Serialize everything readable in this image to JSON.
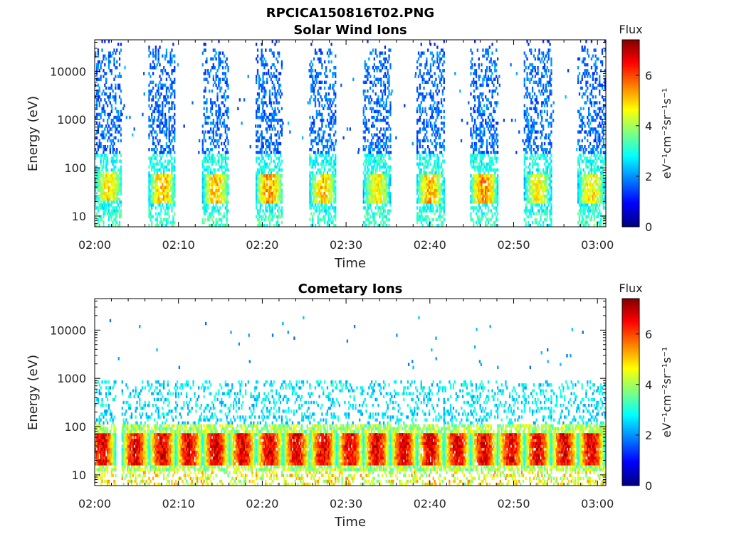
{
  "figure": {
    "filename": "RPCICA150816T02.PNG"
  },
  "chart_data": [
    {
      "type": "heatmap",
      "title": "Solar Wind Ions",
      "xlabel": "Time",
      "ylabel": "Energy (eV)",
      "y_scale": "log",
      "ylim": [
        6,
        45000
      ],
      "xlim": [
        "02:00",
        "03:01"
      ],
      "x_ticks": [
        "02:00",
        "02:10",
        "02:20",
        "02:30",
        "02:40",
        "02:50",
        "03:00"
      ],
      "y_ticks": [
        "10",
        "100",
        "1000",
        "10000"
      ],
      "colorbar": {
        "title": "Flux",
        "label": "eV⁻¹cm⁻²sr⁻¹s⁻¹",
        "range": [
          0,
          7.4
        ],
        "ticks": [
          "0",
          "2",
          "4",
          "6"
        ]
      },
      "colormap": "jet",
      "scan_bursts": [
        {
          "start_min": 0.0,
          "end_min": 3.2,
          "peak_energy_eV": 40,
          "peak_flux": 5.2
        },
        {
          "start_min": 6.4,
          "end_min": 9.6,
          "peak_energy_eV": 35,
          "peak_flux": 5.5
        },
        {
          "start_min": 12.8,
          "end_min": 16.0,
          "peak_energy_eV": 38,
          "peak_flux": 5.5
        },
        {
          "start_min": 19.2,
          "end_min": 22.4,
          "peak_energy_eV": 35,
          "peak_flux": 5.8
        },
        {
          "start_min": 25.6,
          "end_min": 28.8,
          "peak_energy_eV": 35,
          "peak_flux": 5.4
        },
        {
          "start_min": 32.0,
          "end_min": 35.2,
          "peak_energy_eV": 38,
          "peak_flux": 5.0
        },
        {
          "start_min": 38.4,
          "end_min": 41.6,
          "peak_energy_eV": 35,
          "peak_flux": 5.6
        },
        {
          "start_min": 44.8,
          "end_min": 48.0,
          "peak_energy_eV": 35,
          "peak_flux": 5.9
        },
        {
          "start_min": 51.2,
          "end_min": 54.4,
          "peak_energy_eV": 35,
          "peak_flux": 5.0
        },
        {
          "start_min": 57.6,
          "end_min": 60.8,
          "peak_energy_eV": 35,
          "peak_flux": 5.2
        }
      ],
      "background_flux_high_energy": 1.2
    },
    {
      "type": "heatmap",
      "title": "Cometary Ions",
      "xlabel": "Time",
      "ylabel": "Energy (eV)",
      "y_scale": "log",
      "ylim": [
        6,
        45000
      ],
      "xlim": [
        "02:00",
        "03:01"
      ],
      "x_ticks": [
        "02:00",
        "02:10",
        "02:20",
        "02:30",
        "02:40",
        "02:50",
        "03:00"
      ],
      "y_ticks": [
        "10",
        "100",
        "1000",
        "10000"
      ],
      "colorbar": {
        "title": "Flux",
        "label": "eV⁻¹cm⁻²sr⁻¹s⁻¹",
        "range": [
          0,
          7.4
        ],
        "ticks": [
          "0",
          "2",
          "4",
          "6"
        ]
      },
      "colormap": "jet",
      "blob_centers_min": [
        0.8,
        4.8,
        8.0,
        11.2,
        14.4,
        17.6,
        20.8,
        24.0,
        27.2,
        30.4,
        33.6,
        36.8,
        40.0,
        43.2,
        46.4,
        49.6,
        52.8,
        56.0,
        59.2
      ],
      "peak_energy_eV": 35,
      "peak_flux": 7.0
    }
  ]
}
